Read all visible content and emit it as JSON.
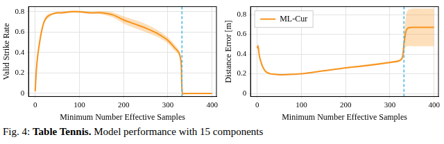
{
  "chart_data": [
    {
      "type": "line",
      "x_label": "Minimum Number Effective Samples",
      "y_label": "Valid Strike Rate",
      "xlim": [
        -15,
        410
      ],
      "xticks": [
        0,
        100,
        200,
        300,
        400
      ],
      "ylim": [
        -0.03,
        0.85
      ],
      "yticks": [
        0,
        0.2,
        0.4,
        0.6,
        0.8
      ],
      "grid": true,
      "vline_x": 332,
      "series": [
        {
          "color": "#f7941d",
          "x": [
            0,
            3,
            6,
            10,
            15,
            20,
            25,
            30,
            40,
            50,
            60,
            80,
            100,
            125,
            150,
            175,
            200,
            225,
            250,
            275,
            300,
            315,
            325,
            330,
            333,
            340,
            360,
            380,
            400
          ],
          "values": [
            0.02,
            0.25,
            0.38,
            0.5,
            0.62,
            0.7,
            0.74,
            0.76,
            0.78,
            0.79,
            0.79,
            0.8,
            0.8,
            0.79,
            0.79,
            0.77,
            0.72,
            0.68,
            0.64,
            0.59,
            0.52,
            0.45,
            0.4,
            0.3,
            0,
            0,
            0,
            0,
            0
          ],
          "band_lower": [
            0.01,
            0.21,
            0.34,
            0.46,
            0.59,
            0.68,
            0.72,
            0.74,
            0.77,
            0.78,
            0.78,
            0.79,
            0.79,
            0.78,
            0.775,
            0.745,
            0.685,
            0.64,
            0.6,
            0.555,
            0.49,
            0.42,
            0.375,
            0.28,
            0,
            0,
            0,
            0,
            0
          ],
          "band_upper": [
            0.03,
            0.29,
            0.42,
            0.54,
            0.65,
            0.72,
            0.76,
            0.78,
            0.79,
            0.8,
            0.8,
            0.81,
            0.81,
            0.8,
            0.805,
            0.795,
            0.755,
            0.72,
            0.68,
            0.625,
            0.55,
            0.48,
            0.425,
            0.32,
            0,
            0,
            0,
            0,
            0
          ]
        }
      ]
    },
    {
      "type": "line",
      "x_label": "Minimum Number Effective Samples",
      "y_label": "Distance Error [m]",
      "xlim": [
        -15,
        410
      ],
      "xticks": [
        0,
        100,
        200,
        300,
        400
      ],
      "ylim": [
        -0.03,
        0.88
      ],
      "yticks": [
        0,
        0.2,
        0.4,
        0.6,
        0.8
      ],
      "grid": true,
      "legend": "upper left",
      "vline_x": 332,
      "series": [
        {
          "name": "ML-Cur",
          "color": "#f7941d",
          "x": [
            0,
            2,
            5,
            10,
            15,
            20,
            30,
            40,
            50,
            60,
            80,
            100,
            150,
            200,
            250,
            300,
            320,
            328,
            332,
            336,
            340,
            350,
            370,
            400
          ],
          "values": [
            0.46,
            0.48,
            0.38,
            0.3,
            0.25,
            0.22,
            0.2,
            0.195,
            0.19,
            0.19,
            0.195,
            0.2,
            0.23,
            0.26,
            0.285,
            0.315,
            0.33,
            0.36,
            0.5,
            0.62,
            0.66,
            0.67,
            0.67,
            0.67
          ],
          "band_lower": [
            0.44,
            0.45,
            0.35,
            0.28,
            0.24,
            0.21,
            0.19,
            0.19,
            0.185,
            0.185,
            0.19,
            0.195,
            0.225,
            0.255,
            0.275,
            0.305,
            0.32,
            0.34,
            0.42,
            0.47,
            0.48,
            0.48,
            0.48,
            0.48
          ],
          "band_upper": [
            0.48,
            0.51,
            0.41,
            0.32,
            0.26,
            0.23,
            0.21,
            0.2,
            0.195,
            0.195,
            0.2,
            0.205,
            0.235,
            0.265,
            0.295,
            0.325,
            0.34,
            0.38,
            0.58,
            0.77,
            0.84,
            0.86,
            0.86,
            0.86
          ]
        }
      ]
    }
  ],
  "caption": {
    "prefix": "Fig. 4:",
    "bold": "Table Tennis.",
    "text": "Model performance with 15 components"
  }
}
